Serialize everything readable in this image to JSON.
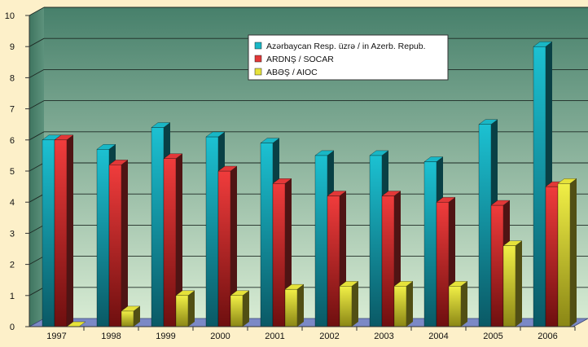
{
  "chart_data": {
    "type": "bar",
    "title": "",
    "xlabel": "",
    "ylabel": "",
    "ylim": [
      0,
      10
    ],
    "yticks": [
      0,
      1,
      2,
      3,
      4,
      5,
      6,
      7,
      8,
      9,
      10
    ],
    "grid": true,
    "legend_position": "top-center",
    "categories": [
      "1997",
      "1998",
      "1999",
      "2000",
      "2001",
      "2002",
      "2003",
      "2004",
      "2005",
      "2006"
    ],
    "series": [
      {
        "name": "Azərbaycan Resp. üzrə / in Azerb. Repub.",
        "color": "#19b7c6",
        "values": [
          6.0,
          5.7,
          6.4,
          6.1,
          5.9,
          5.5,
          5.5,
          5.3,
          6.5,
          9.0
        ]
      },
      {
        "name": "ARDNŞ / SOCAR",
        "color": "#e23838",
        "values": [
          6.0,
          5.2,
          5.4,
          5.0,
          4.6,
          4.2,
          4.2,
          4.0,
          3.9,
          4.5
        ]
      },
      {
        "name": "ABƏŞ / AIOC",
        "color": "#e6e23a",
        "values": [
          0.0,
          0.5,
          1.0,
          1.0,
          1.2,
          1.3,
          1.3,
          1.3,
          2.6,
          4.6
        ]
      }
    ],
    "colors": {
      "page_background": "#fdf0c9",
      "wall_top": "#47806b",
      "wall_bottom": "#d7ebd3",
      "floor": "#7b89c6"
    }
  }
}
